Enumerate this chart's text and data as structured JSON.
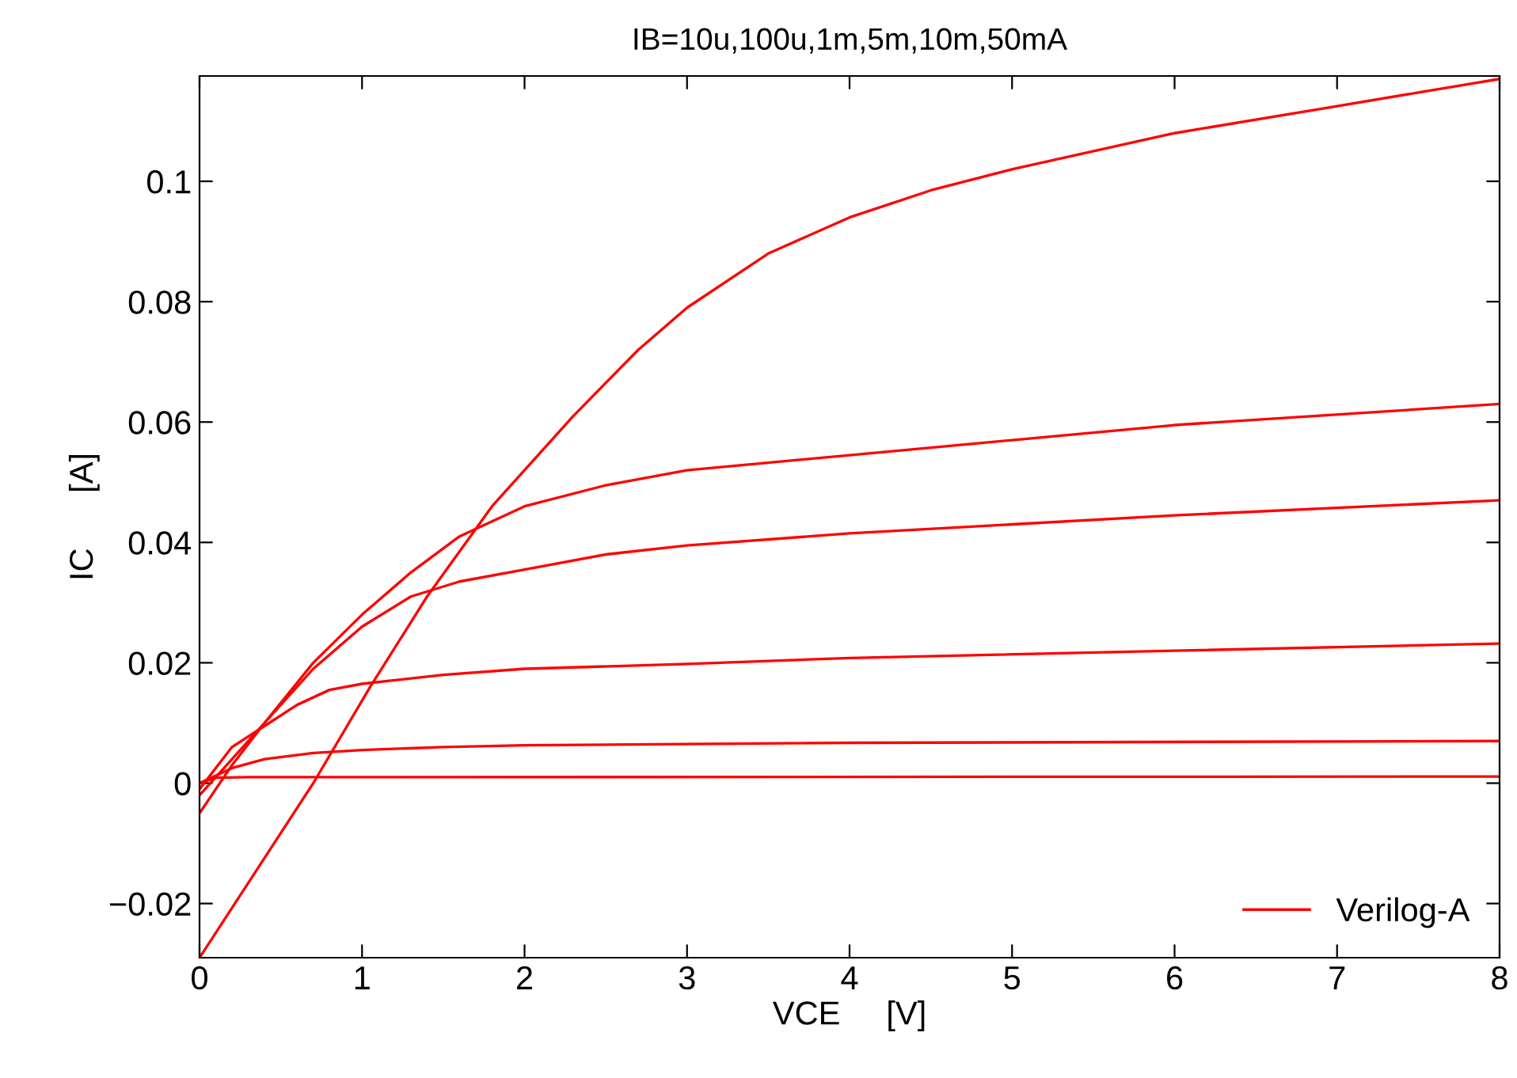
{
  "chart_data": {
    "type": "line",
    "title": "IB=10u,100u,1m,5m,10m,50mA",
    "xlabel": "VCE     [V]",
    "ylabel": "IC      [A]",
    "xlim": [
      0,
      8
    ],
    "ylim": [
      -0.029,
      0.1175
    ],
    "xticks": [
      0,
      1,
      2,
      3,
      4,
      5,
      6,
      7,
      8
    ],
    "yticks": [
      {
        "value": -0.02,
        "label": "−0.02"
      },
      0,
      0.02,
      0.04,
      0.06,
      0.08,
      0.1
    ],
    "grid": false,
    "legend": "bottom right",
    "marker": "none",
    "line_style": "solid",
    "series": [
      {
        "name": "Verilog-A",
        "color": "#ff0000",
        "x": [
          0,
          0.1,
          0.3,
          1,
          8
        ],
        "values": [
          0,
          0.0009,
          0.001,
          0.001,
          0.0011
        ]
      },
      {
        "color": "#ff0000",
        "x": [
          0,
          0.2,
          0.4,
          0.7,
          1,
          1.5,
          2,
          4,
          8
        ],
        "values": [
          0,
          0.0025,
          0.004,
          0.005,
          0.0055,
          0.006,
          0.0063,
          0.0067,
          0.007
        ]
      },
      {
        "color": "#ff0000",
        "x": [
          0,
          0.2,
          0.4,
          0.6,
          0.8,
          1,
          1.5,
          2,
          3,
          4,
          6,
          8
        ],
        "values": [
          -0.001,
          0.006,
          0.0095,
          0.013,
          0.0155,
          0.0165,
          0.018,
          0.019,
          0.0198,
          0.0208,
          0.022,
          0.0232
        ]
      },
      {
        "color": "#ff0000",
        "x": [
          0,
          0.2,
          0.4,
          0.7,
          1,
          1.3,
          1.6,
          2,
          2.5,
          3,
          4,
          5,
          6,
          8
        ],
        "values": [
          -0.002,
          0.004,
          0.01,
          0.019,
          0.026,
          0.031,
          0.0335,
          0.0355,
          0.038,
          0.0395,
          0.0415,
          0.043,
          0.0445,
          0.047
        ]
      },
      {
        "color": "#ff0000",
        "x": [
          0,
          0.2,
          0.4,
          0.7,
          1,
          1.3,
          1.6,
          2,
          2.5,
          3,
          4,
          5,
          6,
          8
        ],
        "values": [
          -0.005,
          0.003,
          0.01,
          0.02,
          0.028,
          0.035,
          0.041,
          0.046,
          0.0495,
          0.052,
          0.0545,
          0.057,
          0.0595,
          0.063
        ]
      },
      {
        "color": "#ff0000",
        "x": [
          0,
          0.7,
          1.05,
          1.4,
          1.8,
          2.3,
          2.7,
          3,
          3.5,
          4,
          4.5,
          5,
          6,
          7,
          8
        ],
        "values": [
          -0.029,
          0.0,
          0.016,
          0.031,
          0.046,
          0.061,
          0.072,
          0.079,
          0.088,
          0.094,
          0.0985,
          0.102,
          0.108,
          0.1125,
          0.117
        ]
      }
    ]
  }
}
